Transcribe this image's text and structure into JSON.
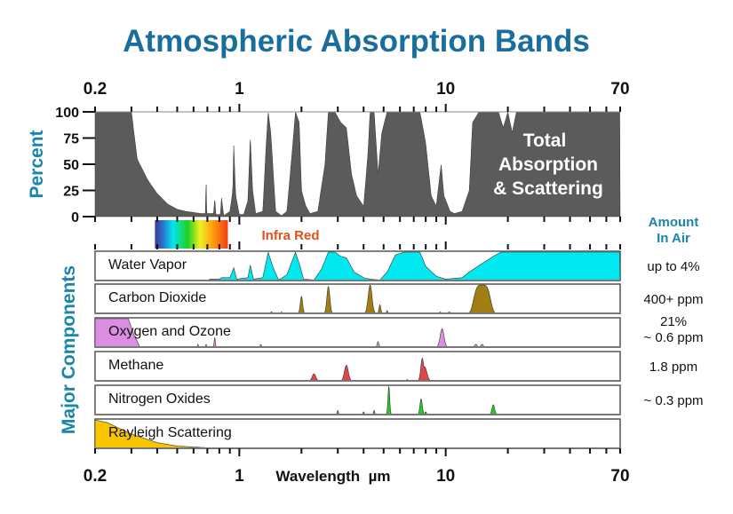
{
  "chart_data": {
    "type": "area",
    "title": "Atmospheric Absorption Bands",
    "xlabel": "Wavelength  µm",
    "xscale": "log",
    "xlim": [
      0.2,
      70
    ],
    "x_tick_labels": [
      "0.2",
      "1",
      "10",
      "70"
    ],
    "x_tick_label_values": [
      0.2,
      1,
      10,
      70
    ],
    "x_minor_ticks": [
      0.2,
      0.3,
      0.4,
      0.5,
      0.6,
      0.7,
      0.8,
      0.9,
      1,
      2,
      3,
      4,
      5,
      6,
      7,
      8,
      9,
      10,
      20,
      30,
      40,
      50,
      60,
      70
    ],
    "grid": false,
    "colors": {
      "title": "#1a6e9e",
      "axis_label": "#1a86ad",
      "total": "#5b5b5b",
      "water": "#00e8f0",
      "co2": "#a27d12",
      "oxygen": "#dc8ee2",
      "methane": "#e04848",
      "nox": "#22cc22",
      "rayleigh": "#f6c500",
      "infrared": "#e0501a"
    },
    "total": {
      "ylabel": "Percent",
      "ylim": [
        0,
        100
      ],
      "y_ticks": [
        "0",
        "25",
        "50",
        "75",
        "100"
      ],
      "y_tick_values": [
        0,
        25,
        50,
        75,
        100
      ],
      "annotation": [
        "Total",
        "Absorption",
        "& Scattering"
      ],
      "points": [
        [
          0.2,
          100
        ],
        [
          0.3,
          100
        ],
        [
          0.32,
          55
        ],
        [
          0.36,
          35
        ],
        [
          0.4,
          22
        ],
        [
          0.45,
          12
        ],
        [
          0.5,
          7
        ],
        [
          0.55,
          5
        ],
        [
          0.6,
          4
        ],
        [
          0.65,
          3
        ],
        [
          0.685,
          3
        ],
        [
          0.69,
          38
        ],
        [
          0.695,
          3
        ],
        [
          0.75,
          3
        ],
        [
          0.76,
          18
        ],
        [
          0.77,
          2
        ],
        [
          0.81,
          2
        ],
        [
          0.82,
          18
        ],
        [
          0.84,
          1
        ],
        [
          0.9,
          5
        ],
        [
          0.93,
          25
        ],
        [
          0.94,
          68
        ],
        [
          0.96,
          20
        ],
        [
          1.0,
          2
        ],
        [
          1.05,
          2
        ],
        [
          1.1,
          15
        ],
        [
          1.13,
          76
        ],
        [
          1.16,
          25
        ],
        [
          1.2,
          3
        ],
        [
          1.3,
          5
        ],
        [
          1.35,
          70
        ],
        [
          1.38,
          100
        ],
        [
          1.42,
          80
        ],
        [
          1.5,
          5
        ],
        [
          1.6,
          1
        ],
        [
          1.7,
          5
        ],
        [
          1.8,
          60
        ],
        [
          1.87,
          100
        ],
        [
          1.95,
          90
        ],
        [
          2.0,
          25
        ],
        [
          2.1,
          10
        ],
        [
          2.2,
          3
        ],
        [
          2.4,
          5
        ],
        [
          2.6,
          50
        ],
        [
          2.7,
          100
        ],
        [
          2.9,
          100
        ],
        [
          3.1,
          90
        ],
        [
          3.3,
          85
        ],
        [
          3.5,
          40
        ],
        [
          3.7,
          20
        ],
        [
          4.0,
          10
        ],
        [
          4.2,
          60
        ],
        [
          4.3,
          100
        ],
        [
          4.5,
          100
        ],
        [
          4.7,
          40
        ],
        [
          4.9,
          80
        ],
        [
          5.2,
          100
        ],
        [
          7.5,
          100
        ],
        [
          8.0,
          70
        ],
        [
          8.5,
          20
        ],
        [
          9.0,
          10
        ],
        [
          9.5,
          50
        ],
        [
          9.8,
          20
        ],
        [
          10.5,
          5
        ],
        [
          11,
          3
        ],
        [
          12,
          5
        ],
        [
          13,
          25
        ],
        [
          13.5,
          90
        ],
        [
          14.5,
          100
        ],
        [
          18,
          100
        ],
        [
          19,
          85
        ],
        [
          20,
          100
        ],
        [
          21,
          80
        ],
        [
          22,
          100
        ],
        [
          70,
          100
        ]
      ]
    },
    "spectrum": {
      "range": [
        0.39,
        0.88
      ],
      "infrared_label": "Infra Red"
    },
    "components_label": "Major Components",
    "amount_header": [
      "Amount",
      "In Air"
    ],
    "series": [
      {
        "name": "Water Vapor",
        "amount": [
          "up to 4%"
        ],
        "color_key": "water",
        "points": [
          [
            0.2,
            0
          ],
          [
            0.7,
            0
          ],
          [
            0.72,
            0.05
          ],
          [
            0.8,
            0.05
          ],
          [
            0.82,
            0.1
          ],
          [
            0.9,
            0.1
          ],
          [
            0.94,
            0.45
          ],
          [
            0.97,
            0.05
          ],
          [
            1.1,
            0.1
          ],
          [
            1.13,
            0.55
          ],
          [
            1.17,
            0.05
          ],
          [
            1.3,
            0.1
          ],
          [
            1.38,
            1
          ],
          [
            1.45,
            0.5
          ],
          [
            1.55,
            0.02
          ],
          [
            1.7,
            0.2
          ],
          [
            1.87,
            1
          ],
          [
            1.95,
            0.6
          ],
          [
            2.05,
            0.05
          ],
          [
            2.3,
            0.02
          ],
          [
            2.5,
            0.4
          ],
          [
            2.7,
            1
          ],
          [
            2.9,
            1
          ],
          [
            3.1,
            0.85
          ],
          [
            3.3,
            0.8
          ],
          [
            3.6,
            0.3
          ],
          [
            4.0,
            0.1
          ],
          [
            4.3,
            0.05
          ],
          [
            4.8,
            0.02
          ],
          [
            5.2,
            0.3
          ],
          [
            5.7,
            0.9
          ],
          [
            6.3,
            1
          ],
          [
            7.5,
            1
          ],
          [
            8,
            0.5
          ],
          [
            9,
            0.15
          ],
          [
            10,
            0.05
          ],
          [
            12,
            0.1
          ],
          [
            13,
            0.3
          ],
          [
            15,
            0.6
          ],
          [
            17,
            0.85
          ],
          [
            18.5,
            1
          ],
          [
            70,
            1
          ]
        ]
      },
      {
        "name": "Carbon Dioxide",
        "amount": [
          "400+ ppm"
        ],
        "color_key": "co2",
        "peaks": [
          [
            1.43,
            0.06,
            0.004
          ],
          [
            1.6,
            0.05,
            0.004
          ],
          [
            2.0,
            0.6,
            0.008
          ],
          [
            2.7,
            0.95,
            0.01
          ],
          [
            4.3,
            1,
            0.013
          ],
          [
            4.8,
            0.3,
            0.006
          ],
          [
            5.2,
            0.1,
            0.004
          ],
          [
            9.4,
            0.05,
            0.005
          ],
          [
            10.4,
            0.05,
            0.005
          ],
          [
            15,
            1,
            0.045
          ]
        ]
      },
      {
        "name": "Oxygen and Ozone",
        "amount": [
          "21%",
          "~ 0.6 ppm"
        ],
        "color_key": "oxygen",
        "points": [
          [
            0.2,
            1
          ],
          [
            0.29,
            1
          ],
          [
            0.31,
            0.4
          ],
          [
            0.33,
            0
          ]
        ],
        "peaks": [
          [
            0.63,
            0.1,
            0.003
          ],
          [
            0.69,
            0.1,
            0.003
          ],
          [
            0.76,
            0.35,
            0.004
          ],
          [
            1.27,
            0.1,
            0.004
          ],
          [
            4.7,
            0.2,
            0.006
          ],
          [
            9.6,
            0.65,
            0.013
          ],
          [
            14,
            0.1,
            0.008
          ],
          [
            15,
            0.1,
            0.008
          ]
        ]
      },
      {
        "name": "Methane",
        "amount": [
          "1.8 ppm"
        ],
        "color_key": "methane",
        "peaks": [
          [
            2.3,
            0.25,
            0.012
          ],
          [
            3.3,
            0.55,
            0.013
          ],
          [
            6.5,
            0.05,
            0.004
          ],
          [
            7.7,
            0.8,
            0.01
          ],
          [
            7.9,
            0.5,
            0.015
          ]
        ]
      },
      {
        "name": "Nitrogen Oxides",
        "amount": [
          "~ 0.3 ppm"
        ],
        "color_key": "nox",
        "peaks": [
          [
            3.0,
            0.15,
            0.004
          ],
          [
            4.0,
            0.1,
            0.004
          ],
          [
            4.5,
            0.15,
            0.004
          ],
          [
            5.3,
            1,
            0.006
          ],
          [
            7.6,
            0.55,
            0.008
          ],
          [
            8.0,
            0.1,
            0.005
          ],
          [
            17,
            0.35,
            0.009
          ]
        ]
      },
      {
        "name": "Rayleigh Scattering",
        "amount": [],
        "color_key": "rayleigh",
        "points": [
          [
            0.2,
            1
          ],
          [
            0.23,
            0.9
          ],
          [
            0.3,
            0.5
          ],
          [
            0.4,
            0.2
          ],
          [
            0.5,
            0.08
          ],
          [
            0.7,
            0.02
          ],
          [
            0.9,
            0
          ]
        ]
      }
    ]
  }
}
